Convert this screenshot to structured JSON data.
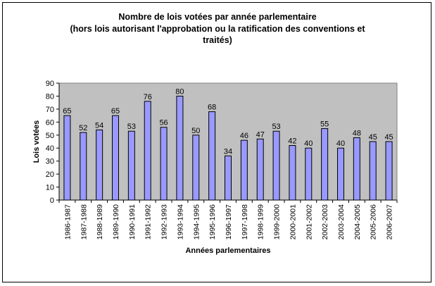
{
  "chart_data": {
    "type": "bar",
    "title_lines": [
      "Nombre de lois votées par année parlementaire",
      "(hors lois autorisant l'approbation ou la ratification des conventions et",
      "traités)"
    ],
    "xlabel": "Années parlementaires",
    "ylabel": "Lois votées",
    "ylim": [
      0,
      90
    ],
    "yticks": [
      "0",
      "10",
      "20",
      "30",
      "40",
      "50",
      "60",
      "70",
      "80",
      "90"
    ],
    "grid": false,
    "categories": [
      "1986-1987",
      "1987-1988",
      "1988-1989",
      "1989-1990",
      "1990-1991",
      "1991-1992",
      "1992-1993",
      "1993-1994",
      "1994-1995",
      "1995-1996",
      "1996-1997",
      "1997-1998",
      "1998-1999",
      "1999-2000",
      "2000-2001",
      "2001-2002",
      "2002-2003",
      "2003-2004",
      "2004-2005",
      "2005-2006",
      "2006-2007"
    ],
    "values": [
      65,
      52,
      54,
      65,
      53,
      76,
      56,
      80,
      50,
      68,
      34,
      46,
      47,
      53,
      42,
      40,
      55,
      40,
      48,
      45,
      45
    ],
    "data_labels": [
      "65",
      "52",
      "54",
      "65",
      "53",
      "76",
      "56",
      "80",
      "50",
      "68",
      "34",
      "46",
      "47",
      "53",
      "42",
      "40",
      "55",
      "40",
      "48",
      "45",
      "45"
    ],
    "colors": {
      "bar_fill": "#9999ff",
      "plot_bg": "#c0c0c0",
      "bar_stroke": "#000000"
    }
  }
}
